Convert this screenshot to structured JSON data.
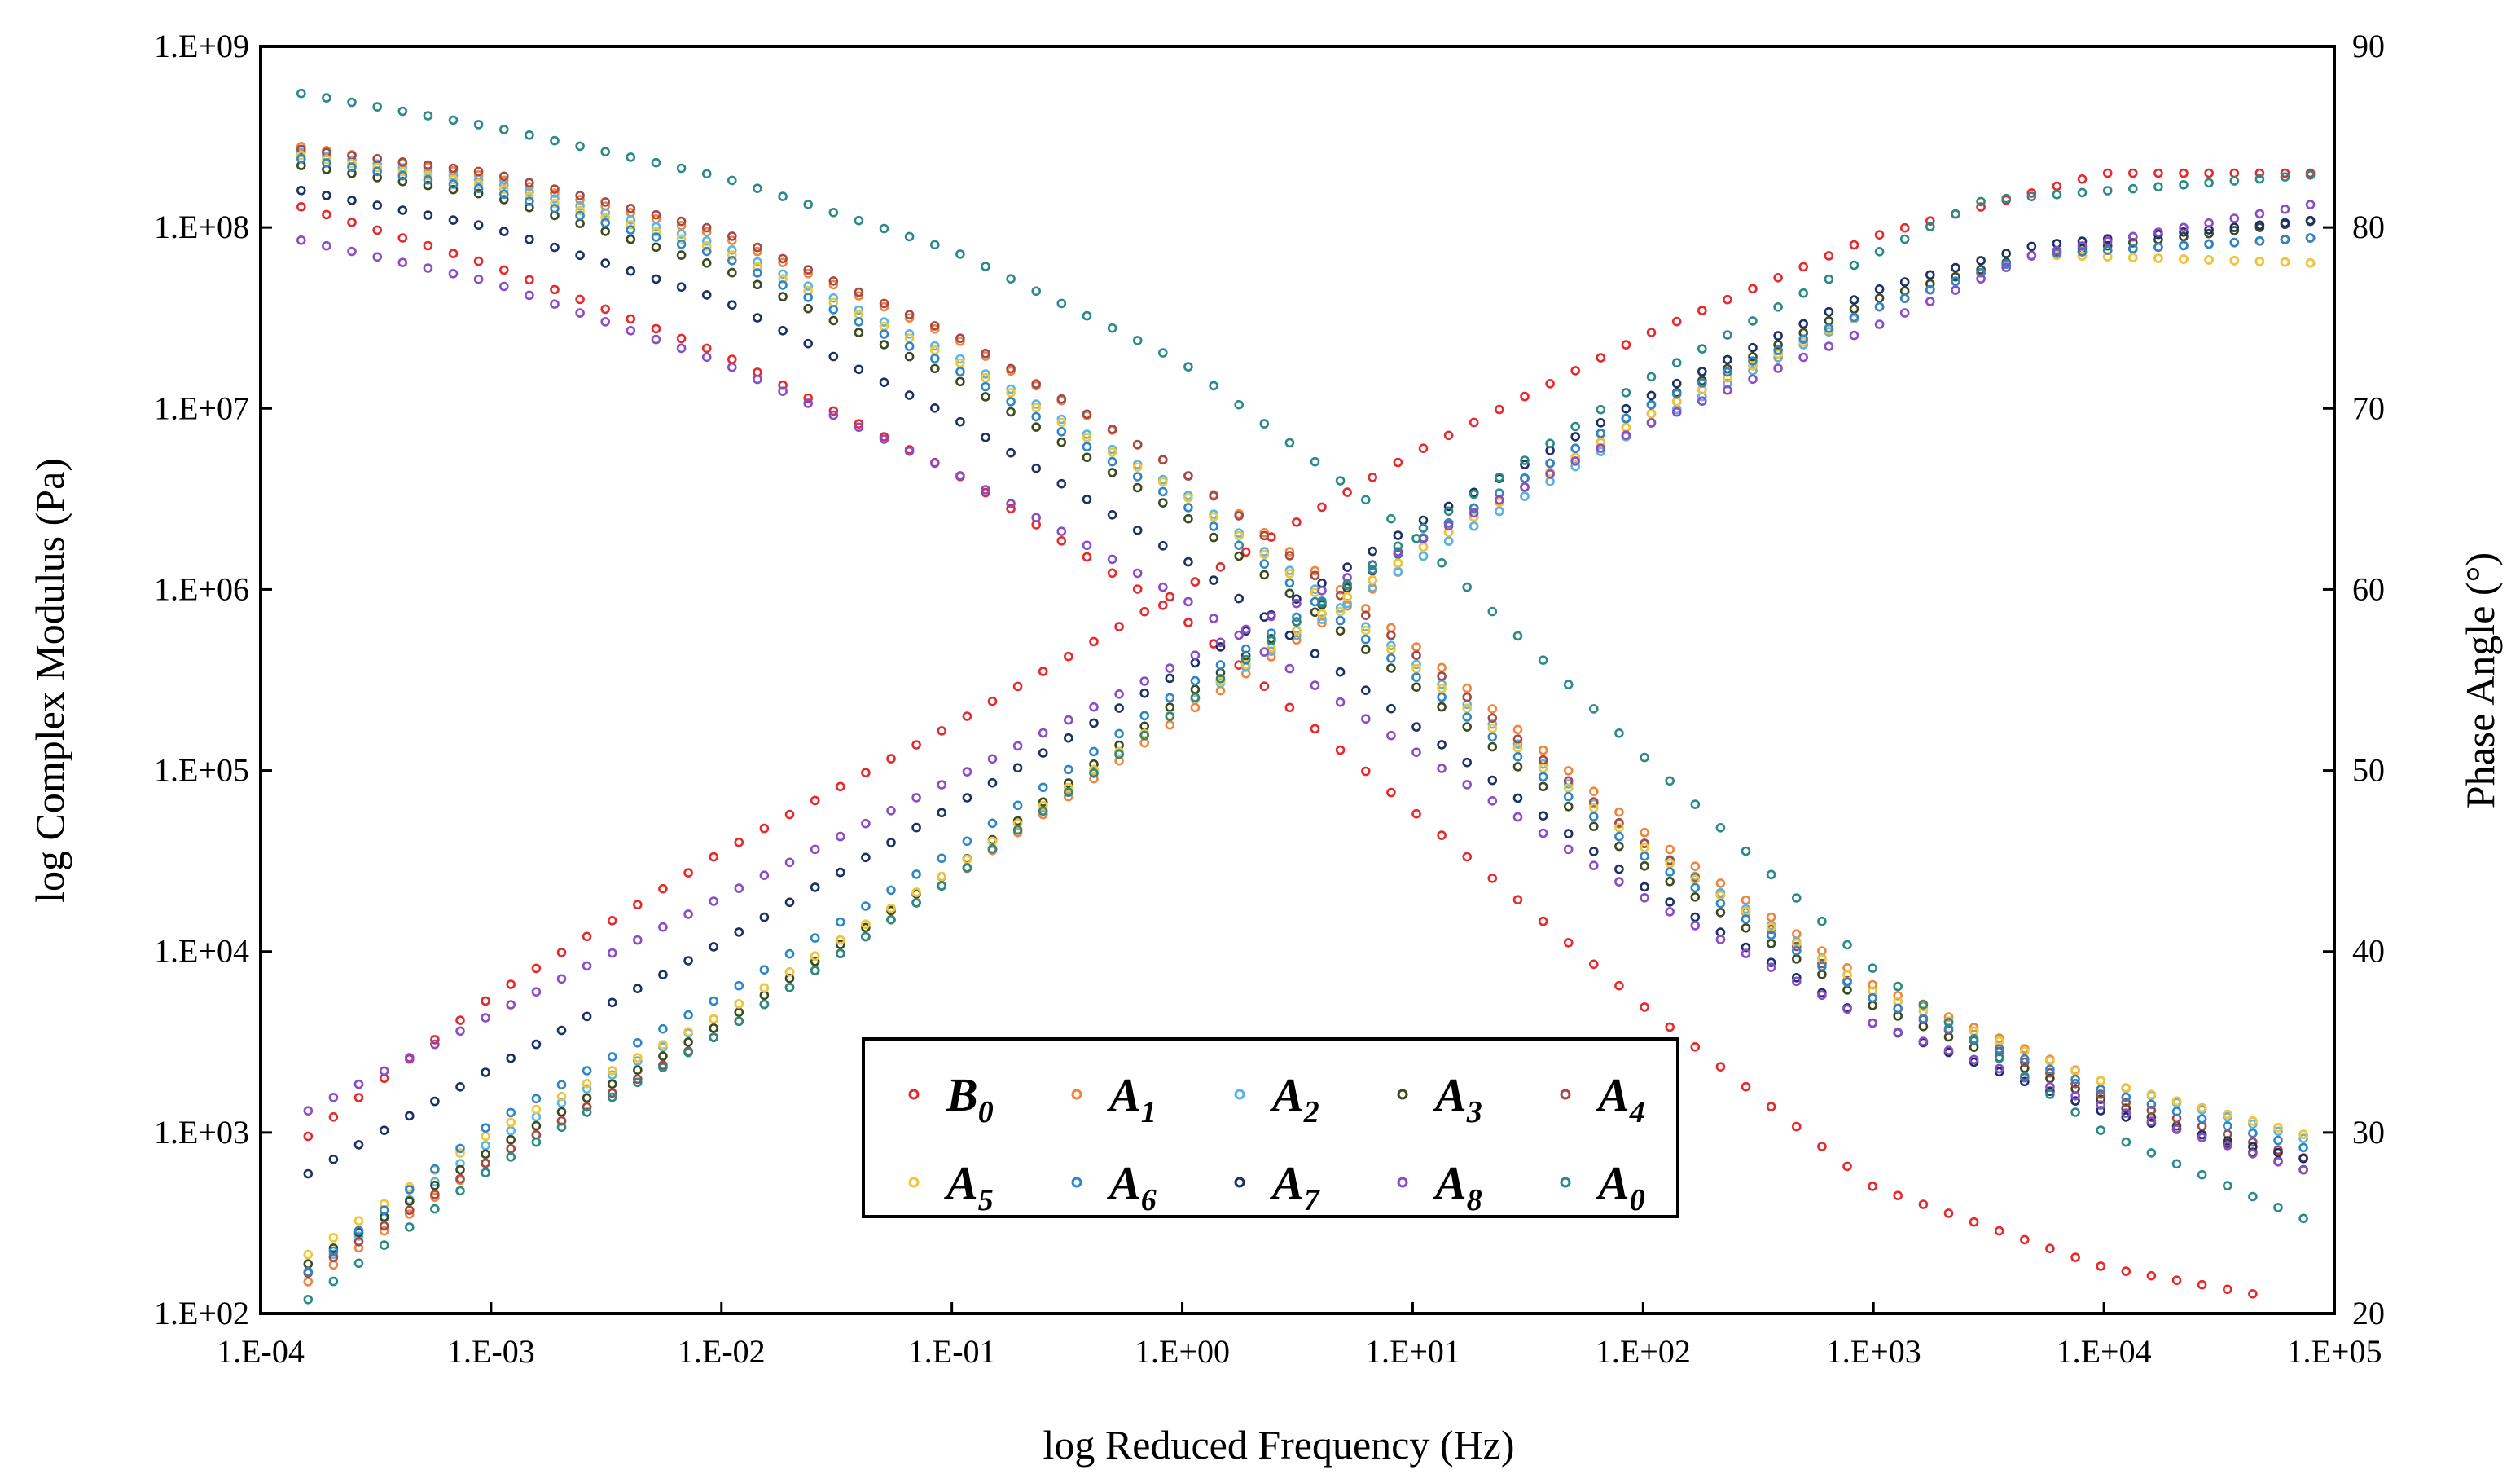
{
  "chart_data": {
    "type": "scatter",
    "title": "",
    "xlabel": "log Reduced Frequency (Hz)",
    "ylabel": "log Complex Modulus (Pa)",
    "y2label": "Phase Angle (°)",
    "xscale": "log",
    "yscale": "log",
    "xlim": [
      0.0001,
      100000
    ],
    "ylim": [
      100,
      1000000000
    ],
    "y2lim": [
      20,
      90
    ],
    "x_tick_labels": [
      "1.E-04",
      "1.E-03",
      "1.E-02",
      "1.E-01",
      "1.E+00",
      "1.E+01",
      "1.E+02",
      "1.E+03",
      "1.E+04",
      "1.E+05"
    ],
    "y_tick_labels": [
      "1.E+02",
      "1.E+03",
      "1.E+04",
      "1.E+05",
      "1.E+06",
      "1.E+07",
      "1.E+08",
      "1.E+09"
    ],
    "y2_tick_labels": [
      "20",
      "30",
      "40",
      "50",
      "60",
      "70",
      "80",
      "90"
    ],
    "legend_position": "bottom-center",
    "series": [
      {
        "name": "B0",
        "label": "B",
        "sub": "0",
        "color": "#e8282a",
        "modulus": [
          [
            0.00015,
            130000000.0
          ],
          [
            0.001,
            62000000.0
          ],
          [
            0.01,
            20000000.0
          ],
          [
            0.1,
            4500000.0
          ],
          [
            1,
            700000.0
          ],
          [
            10,
            60000.0
          ],
          [
            100,
            5000.0
          ],
          [
            1000,
            500.0
          ],
          [
            10000,
            180.0
          ],
          [
            50000,
            125.0
          ]
        ],
        "phase": [
          [
            0.00015,
            29.5
          ],
          [
            0.001,
            37.5
          ],
          [
            0.01,
            45.5
          ],
          [
            0.1,
            52.5
          ],
          [
            1,
            60.0
          ],
          [
            10,
            67.5
          ],
          [
            100,
            74.0
          ],
          [
            1000,
            79.5
          ],
          [
            10000,
            83.0
          ],
          [
            100000,
            83.0
          ]
        ]
      },
      {
        "name": "A1",
        "label": "A",
        "sub": "1",
        "color": "#f0843c",
        "modulus": [
          [
            0.00015,
            280000000.0
          ],
          [
            0.001,
            190000000.0
          ],
          [
            0.01,
            90000000.0
          ],
          [
            0.1,
            25000000.0
          ],
          [
            1,
            4500000.0
          ],
          [
            10,
            500000.0
          ],
          [
            100,
            46000.0
          ],
          [
            1000,
            6500.0
          ],
          [
            10000,
            1900.0
          ],
          [
            80000,
            950.0
          ]
        ],
        "phase": [
          [
            0.00015,
            21.5
          ],
          [
            0.001,
            28.5
          ],
          [
            0.01,
            35.5
          ],
          [
            0.1,
            44.0
          ],
          [
            1,
            53.0
          ],
          [
            10,
            61.5
          ],
          [
            100,
            69.0
          ],
          [
            1000,
            75.5
          ],
          [
            5000,
            78.5
          ],
          [
            100000,
            78.0
          ]
        ]
      },
      {
        "name": "A2",
        "label": "A",
        "sub": "2",
        "color": "#56b7e6",
        "modulus": [
          [
            0.00015,
            260000000.0
          ],
          [
            0.001,
            180000000.0
          ],
          [
            0.01,
            80000000.0
          ],
          [
            0.1,
            20000000.0
          ],
          [
            1,
            3500000.0
          ],
          [
            10,
            400000.0
          ],
          [
            100,
            40000.0
          ],
          [
            1000,
            6000.0
          ],
          [
            10000,
            1900.0
          ],
          [
            80000,
            900.0
          ]
        ],
        "phase": [
          [
            0.00015,
            22.0
          ],
          [
            0.001,
            29.5
          ],
          [
            0.01,
            36.5
          ],
          [
            0.1,
            44.5
          ],
          [
            1,
            53.5
          ],
          [
            10,
            61.5
          ],
          [
            100,
            69.0
          ],
          [
            1000,
            75.5
          ],
          [
            5000,
            78.5
          ],
          [
            100000,
            79.5
          ]
        ]
      },
      {
        "name": "A3",
        "label": "A",
        "sub": "3",
        "color": "#3c4a1e",
        "modulus": [
          [
            0.00015,
            220000000.0
          ],
          [
            0.001,
            150000000.0
          ],
          [
            0.01,
            60000000.0
          ],
          [
            0.1,
            15000000.0
          ],
          [
            1,
            2600000.0
          ],
          [
            10,
            300000.0
          ],
          [
            100,
            30000.0
          ],
          [
            1000,
            5000.0
          ],
          [
            10000,
            1500.0
          ],
          [
            80000,
            600.0
          ]
        ],
        "phase": [
          [
            0.00015,
            22.5
          ],
          [
            0.001,
            29.0
          ],
          [
            0.01,
            36.0
          ],
          [
            0.1,
            44.5
          ],
          [
            1,
            54.0
          ],
          [
            10,
            62.5
          ],
          [
            100,
            70.0
          ],
          [
            1000,
            76.0
          ],
          [
            5000,
            78.5
          ],
          [
            100000,
            80.5
          ]
        ]
      },
      {
        "name": "A4",
        "label": "A",
        "sub": "4",
        "color": "#a44848",
        "modulus": [
          [
            0.00015,
            270000000.0
          ],
          [
            0.001,
            200000000.0
          ],
          [
            0.01,
            95000000.0
          ],
          [
            0.1,
            26000000.0
          ],
          [
            1,
            4500000.0
          ],
          [
            10,
            450000.0
          ],
          [
            100,
            40000.0
          ],
          [
            1000,
            5500.0
          ],
          [
            10000,
            1600.0
          ],
          [
            80000,
            700.0
          ]
        ],
        "phase": [
          [
            0.00015,
            22.0
          ],
          [
            0.001,
            28.5
          ],
          [
            0.01,
            35.5
          ],
          [
            0.1,
            44.0
          ],
          [
            1,
            53.5
          ],
          [
            10,
            62.0
          ],
          [
            100,
            69.5
          ],
          [
            1000,
            75.5
          ],
          [
            5000,
            78.5
          ],
          [
            100000,
            79.5
          ]
        ]
      },
      {
        "name": "A5",
        "label": "A",
        "sub": "5",
        "color": "#f4c432",
        "modulus": [
          [
            0.00015,
            250000000.0
          ],
          [
            0.001,
            170000000.0
          ],
          [
            0.01,
            75000000.0
          ],
          [
            0.1,
            19000000.0
          ],
          [
            1,
            3400000.0
          ],
          [
            10,
            380000.0
          ],
          [
            100,
            38000.0
          ],
          [
            1000,
            6000.0
          ],
          [
            10000,
            1900.0
          ],
          [
            80000,
            950.0
          ]
        ],
        "phase": [
          [
            0.00015,
            23.0
          ],
          [
            0.001,
            30.0
          ],
          [
            0.01,
            36.5
          ],
          [
            0.1,
            44.5
          ],
          [
            1,
            53.5
          ],
          [
            10,
            62.0
          ],
          [
            100,
            69.5
          ],
          [
            1000,
            75.5
          ],
          [
            5000,
            78.5
          ],
          [
            100000,
            78.0
          ]
        ]
      },
      {
        "name": "A6",
        "label": "A",
        "sub": "6",
        "color": "#2e86c8",
        "modulus": [
          [
            0.00015,
            240000000.0
          ],
          [
            0.001,
            160000000.0
          ],
          [
            0.01,
            70000000.0
          ],
          [
            0.1,
            17000000.0
          ],
          [
            1,
            3000000.0
          ],
          [
            10,
            340000.0
          ],
          [
            100,
            34000.0
          ],
          [
            1000,
            5500.0
          ],
          [
            10000,
            1700.0
          ],
          [
            80000,
            800.0
          ]
        ],
        "phase": [
          [
            0.00015,
            22.0
          ],
          [
            0.001,
            30.5
          ],
          [
            0.01,
            37.5
          ],
          [
            0.1,
            45.5
          ],
          [
            1,
            54.5
          ],
          [
            10,
            62.5
          ],
          [
            100,
            70.0
          ],
          [
            1000,
            75.5
          ],
          [
            5000,
            78.5
          ],
          [
            100000,
            79.5
          ]
        ]
      },
      {
        "name": "A7",
        "label": "A",
        "sub": "7",
        "color": "#1c2f66",
        "modulus": [
          [
            0.00015,
            160000000.0
          ],
          [
            0.001,
            100000000.0
          ],
          [
            0.01,
            40000000.0
          ],
          [
            0.1,
            9000000.0
          ],
          [
            1,
            1500000.0
          ],
          [
            10,
            180000.0
          ],
          [
            100,
            23000.0
          ],
          [
            1000,
            4000.0
          ],
          [
            10000,
            1300.0
          ],
          [
            80000,
            700.0
          ]
        ],
        "phase": [
          [
            0.00015,
            27.5
          ],
          [
            0.001,
            33.5
          ],
          [
            0.01,
            40.5
          ],
          [
            0.1,
            48.0
          ],
          [
            1,
            55.5
          ],
          [
            10,
            63.5
          ],
          [
            100,
            70.5
          ],
          [
            1000,
            76.5
          ],
          [
            5000,
            79.0
          ],
          [
            100000,
            80.5
          ]
        ]
      },
      {
        "name": "A8",
        "label": "A",
        "sub": "8",
        "color": "#8a4cc8",
        "modulus": [
          [
            0.00015,
            85000000.0
          ],
          [
            0.001,
            50000000.0
          ],
          [
            0.01,
            18000000.0
          ],
          [
            0.1,
            4500000.0
          ],
          [
            1,
            900000.0
          ],
          [
            10,
            130000.0
          ],
          [
            100,
            20000.0
          ],
          [
            1000,
            4000.0
          ],
          [
            10000,
            1400.0
          ],
          [
            80000,
            600.0
          ]
        ],
        "phase": [
          [
            0.00015,
            31.0
          ],
          [
            0.001,
            36.5
          ],
          [
            0.01,
            43.0
          ],
          [
            0.1,
            49.5
          ],
          [
            1,
            56.0
          ],
          [
            10,
            62.5
          ],
          [
            100,
            69.0
          ],
          [
            1000,
            74.5
          ],
          [
            5000,
            78.5
          ],
          [
            100000,
            81.5
          ]
        ]
      },
      {
        "name": "A0",
        "label": "A",
        "sub": "0",
        "color": "#2a8a84",
        "modulus": [
          [
            0.00015,
            550000000.0
          ],
          [
            0.001,
            360000000.0
          ],
          [
            0.01,
            190000000.0
          ],
          [
            0.1,
            75000000.0
          ],
          [
            1,
            18000000.0
          ],
          [
            10,
            2000000.0
          ],
          [
            100,
            120000.0
          ],
          [
            1000,
            8000.0
          ],
          [
            10000,
            1000.0
          ],
          [
            80000,
            320.0
          ]
        ],
        "phase": [
          [
            0.00015,
            20.5
          ],
          [
            0.001,
            28.0
          ],
          [
            0.01,
            35.5
          ],
          [
            0.1,
            44.0
          ],
          [
            1,
            53.5
          ],
          [
            10,
            63.0
          ],
          [
            100,
            71.5
          ],
          [
            1000,
            78.5
          ],
          [
            3000,
            81.5
          ],
          [
            100000,
            83.0
          ]
        ]
      }
    ]
  }
}
